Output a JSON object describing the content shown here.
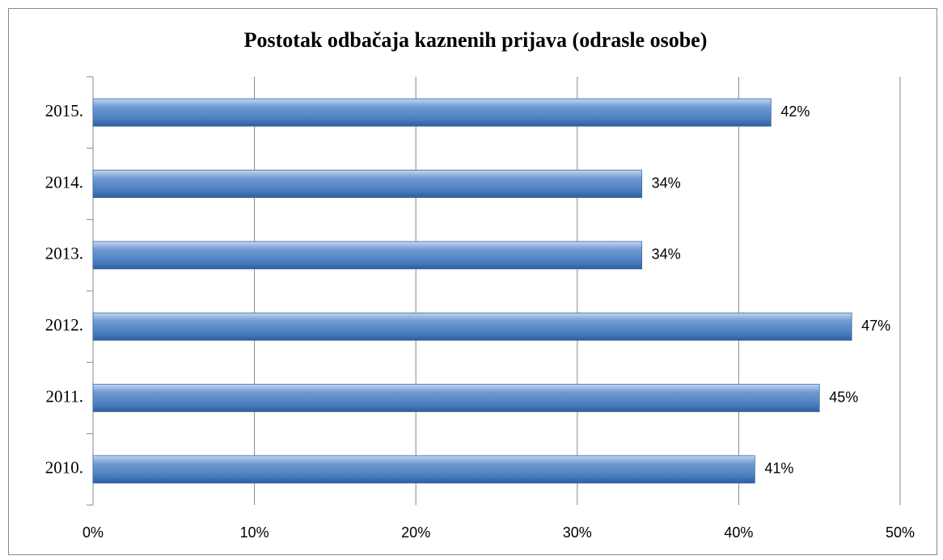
{
  "chart_data": {
    "type": "bar",
    "orientation": "horizontal",
    "title": "Postotak odbačaja kaznenih prijava (odrasle osobe)",
    "categories": [
      "2010.",
      "2011.",
      "2012.",
      "2013.",
      "2014.",
      "2015."
    ],
    "values": [
      41,
      45,
      47,
      34,
      34,
      42
    ],
    "value_labels": [
      "41%",
      "45%",
      "47%",
      "34%",
      "34%",
      "42%"
    ],
    "color": "#4f81bd",
    "xlim": [
      0,
      50
    ],
    "xticks": [
      {
        "value": 0,
        "label": "0%"
      },
      {
        "value": 10,
        "label": "10%"
      },
      {
        "value": 20,
        "label": "20%"
      },
      {
        "value": 30,
        "label": "30%"
      },
      {
        "value": 40,
        "label": "40%"
      },
      {
        "value": 50,
        "label": "50%"
      }
    ],
    "grid": true
  }
}
